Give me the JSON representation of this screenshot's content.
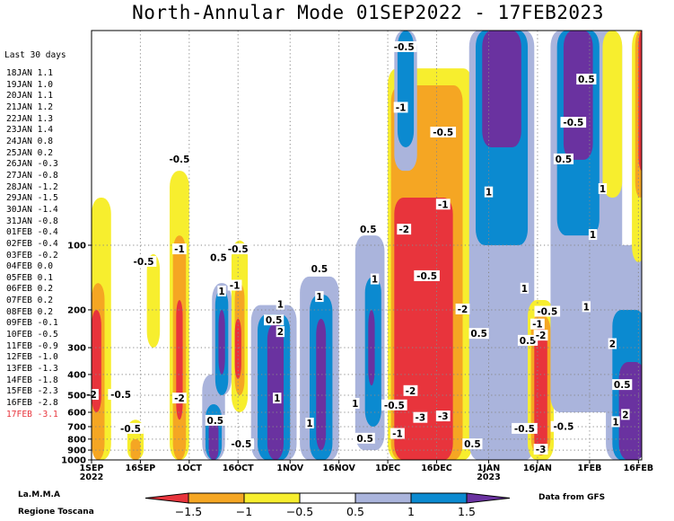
{
  "title": "North-Annular Mode 01SEP2022 - 17FEB2023",
  "sidebar": {
    "header": "Last 30 days",
    "highlight_color": "#e8343c",
    "entries": [
      {
        "date": "18JAN",
        "value": "1.1"
      },
      {
        "date": "19JAN",
        "value": "1.0"
      },
      {
        "date": "20JAN",
        "value": "1.1"
      },
      {
        "date": "21JAN",
        "value": "1.2"
      },
      {
        "date": "22JAN",
        "value": "1.3"
      },
      {
        "date": "23JAN",
        "value": "1.4"
      },
      {
        "date": "24JAN",
        "value": "0.8"
      },
      {
        "date": "25JAN",
        "value": "0.2"
      },
      {
        "date": "26JAN",
        "value": "-0.3"
      },
      {
        "date": "27JAN",
        "value": "-0.8"
      },
      {
        "date": "28JAN",
        "value": "-1.2"
      },
      {
        "date": "29JAN",
        "value": "-1.5"
      },
      {
        "date": "30JAN",
        "value": "-1.4"
      },
      {
        "date": "31JAN",
        "value": "-0.8"
      },
      {
        "date": "01FEB",
        "value": "-0.4"
      },
      {
        "date": "02FEB",
        "value": "-0.4"
      },
      {
        "date": "03FEB",
        "value": "-0.2"
      },
      {
        "date": "04FEB",
        "value": "0.0"
      },
      {
        "date": "05FEB",
        "value": "0.1"
      },
      {
        "date": "06FEB",
        "value": "0.2"
      },
      {
        "date": "07FEB",
        "value": "0.2"
      },
      {
        "date": "08FEB",
        "value": "0.2"
      },
      {
        "date": "09FEB",
        "value": "-0.1"
      },
      {
        "date": "10FEB",
        "value": "-0.5"
      },
      {
        "date": "11FEB",
        "value": "-0.9"
      },
      {
        "date": "12FEB",
        "value": "-1.0"
      },
      {
        "date": "13FEB",
        "value": "-1.3"
      },
      {
        "date": "14FEB",
        "value": "-1.8"
      },
      {
        "date": "15FEB",
        "value": "-2.3"
      },
      {
        "date": "16FEB",
        "value": "-2.8"
      },
      {
        "date": "17FEB",
        "value": "-3.1"
      }
    ]
  },
  "footer": {
    "left_line1": "La.M.M.A",
    "left_line2": "Regione Toscana",
    "right": "Data from GFS"
  },
  "chart_data": {
    "type": "heatmap",
    "title": "North-Annular Mode 01SEP2022 - 17FEB2023",
    "xlabel": "",
    "ylabel": "",
    "x_ticks": [
      {
        "label": "1SEP",
        "sub": "2022"
      },
      {
        "label": "16SEP",
        "sub": ""
      },
      {
        "label": "1OCT",
        "sub": ""
      },
      {
        "label": "16OCT",
        "sub": ""
      },
      {
        "label": "1NOV",
        "sub": ""
      },
      {
        "label": "16NOV",
        "sub": ""
      },
      {
        "label": "1DEC",
        "sub": ""
      },
      {
        "label": "16DEC",
        "sub": ""
      },
      {
        "label": "1JAN",
        "sub": "2023"
      },
      {
        "label": "16JAN",
        "sub": ""
      },
      {
        "label": "1FEB",
        "sub": ""
      },
      {
        "label": "16FEB",
        "sub": ""
      }
    ],
    "y_scale": "log",
    "y_reversed": true,
    "y_ticks": [
      100,
      200,
      300,
      400,
      500,
      600,
      700,
      800,
      900,
      1000
    ],
    "ylim": [
      1000,
      10
    ],
    "grid": true,
    "colorbar": {
      "colors": [
        "#e8343c",
        "#f5a623",
        "#f7ee2e",
        "#ffffff",
        "#aab4dc",
        "#0b8ad0",
        "#6a32a0"
      ],
      "tick_labels": [
        "-1.5",
        "-1",
        "-0.5",
        "0.5",
        "1",
        "1.5"
      ]
    },
    "contour_labels": [
      {
        "text": "-2",
        "date": "1SEP",
        "p": 500
      },
      {
        "text": "-0.5",
        "date": "10SEP",
        "p": 500
      },
      {
        "text": "-0.5",
        "date": "13SEP",
        "p": 720
      },
      {
        "text": "-0.5",
        "date": "17SEP",
        "p": 120
      },
      {
        "text": "-0.5",
        "date": "28SEP",
        "p": 40
      },
      {
        "text": "-1",
        "date": "28SEP",
        "p": 105
      },
      {
        "text": "-2",
        "date": "28SEP",
        "p": 520
      },
      {
        "text": "0.5",
        "date": "9OCT",
        "p": 660
      },
      {
        "text": "0.5",
        "date": "10OCT",
        "p": 115
      },
      {
        "text": "1",
        "date": "11OCT",
        "p": 165
      },
      {
        "text": "-0.5",
        "date": "16OCT",
        "p": 105
      },
      {
        "text": "-1",
        "date": "15OCT",
        "p": 155
      },
      {
        "text": "-0.5",
        "date": "17OCT",
        "p": 850
      },
      {
        "text": "0.5",
        "date": "27OCT",
        "p": 225
      },
      {
        "text": "1",
        "date": "29OCT",
        "p": 190
      },
      {
        "text": "2",
        "date": "29OCT",
        "p": 255
      },
      {
        "text": "1",
        "date": "28OCT",
        "p": 520
      },
      {
        "text": "1",
        "date": "7NOV",
        "p": 680
      },
      {
        "text": "0.5",
        "date": "10NOV",
        "p": 130
      },
      {
        "text": "1",
        "date": "10NOV",
        "p": 175
      },
      {
        "text": "0.5",
        "date": "25NOV",
        "p": 85
      },
      {
        "text": "1",
        "date": "27NOV",
        "p": 145
      },
      {
        "text": "1",
        "date": "21NOV",
        "p": 550
      },
      {
        "text": "0.5",
        "date": "24NOV",
        "p": 800
      },
      {
        "text": "-0.5",
        "date": "3DEC",
        "p": 560
      },
      {
        "text": "-1",
        "date": "4DEC",
        "p": 760
      },
      {
        "text": "-0.5",
        "date": "6DEC",
        "p": 12
      },
      {
        "text": "-1",
        "date": "5DEC",
        "p": 23
      },
      {
        "text": "-2",
        "date": "6DEC",
        "p": 85
      },
      {
        "text": "-2",
        "date": "8DEC",
        "p": 480
      },
      {
        "text": "-3",
        "date": "11DEC",
        "p": 640
      },
      {
        "text": "-0.5",
        "date": "18DEC",
        "p": 30
      },
      {
        "text": "-1",
        "date": "18DEC",
        "p": 65
      },
      {
        "text": "-0.5",
        "date": "13DEC",
        "p": 140
      },
      {
        "text": "-3",
        "date": "18DEC",
        "p": 630
      },
      {
        "text": "-2",
        "date": "24DEC",
        "p": 200
      },
      {
        "text": "0.5",
        "date": "27DEC",
        "p": 850
      },
      {
        "text": "0.5",
        "date": "29DEC",
        "p": 260
      },
      {
        "text": "1",
        "date": "1JAN",
        "p": 57
      },
      {
        "text": "1",
        "date": "12JAN",
        "p": 160
      },
      {
        "text": "0.5",
        "date": "13JAN",
        "p": 280
      },
      {
        "text": "-1",
        "date": "16JAN",
        "p": 235
      },
      {
        "text": "-2",
        "date": "17JAN",
        "p": 265
      },
      {
        "text": "-0.5",
        "date": "19JAN",
        "p": 205
      },
      {
        "text": "-0.5",
        "date": "12JAN",
        "p": 720
      },
      {
        "text": "-3",
        "date": "17JAN",
        "p": 900
      },
      {
        "text": "-0.5",
        "date": "24JAN",
        "p": 705
      },
      {
        "text": "-0.5",
        "date": "27JAN",
        "p": 27
      },
      {
        "text": "0.5",
        "date": "24JAN",
        "p": 40
      },
      {
        "text": "0.5",
        "date": "31JAN",
        "p": 17
      },
      {
        "text": "1",
        "date": "5FEB",
        "p": 55
      },
      {
        "text": "1",
        "date": "2FEB",
        "p": 90
      },
      {
        "text": "1",
        "date": "31JAN",
        "p": 195
      },
      {
        "text": "2",
        "date": "8FEB",
        "p": 290
      },
      {
        "text": "0.5",
        "date": "11FEB",
        "p": 450
      },
      {
        "text": "1",
        "date": "9FEB",
        "p": 670
      },
      {
        "text": "2",
        "date": "12FEB",
        "p": 620
      }
    ]
  }
}
